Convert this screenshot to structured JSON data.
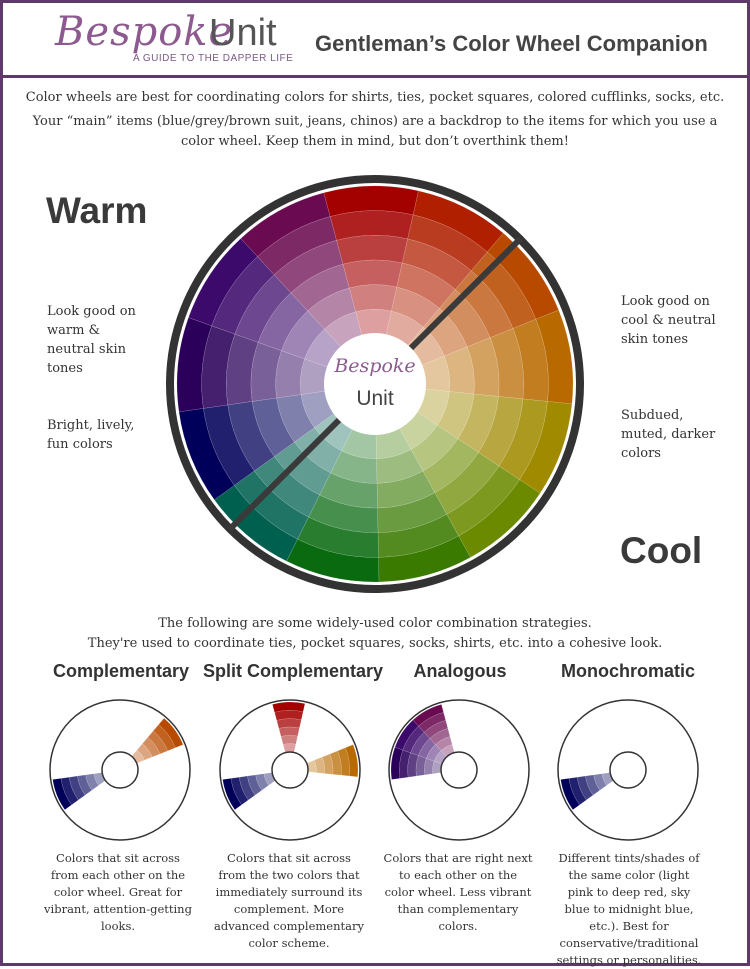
{
  "header": {
    "logo_script": "Bespoke",
    "logo_unit": "Unit",
    "logo_tagline": "A GUIDE TO THE DAPPER LIFE",
    "title": "Gentleman’s Color Wheel Companion"
  },
  "intro": {
    "line1": "Color wheels are best for coordinating colors for shirts, ties, pocket squares, colored cufflinks, socks, etc.",
    "line2": "Your “main” items (blue/grey/brown suit, jeans, chinos) are a backdrop to the items for which you use a color wheel. Keep them in mind, but don’t overthink them!"
  },
  "wheel": {
    "center_script": "Bespoke",
    "center_unit": "Unit",
    "hues": [
      "#a30000",
      "#b02000",
      "#b84a00",
      "#b86a00",
      "#a08a00",
      "#6c8a00",
      "#3a7a00",
      "#0a6a10",
      "#006050",
      "#00005a",
      "#2a005a",
      "#3c0a6a",
      "#6a0a50"
    ]
  },
  "warm": {
    "heading": "Warm",
    "note1": "Look good on warm & neutral skin tones",
    "note2": "Bright, lively, fun colors"
  },
  "cool": {
    "heading": "Cool",
    "note1": "Look good on cool & neutral skin tones",
    "note2": "Subdued, muted, darker colors"
  },
  "strategies_intro": {
    "line1": "The following are some widely-used color combination strategies.",
    "line2": "They're used to coordinate ties, pocket squares, socks, shirts, etc. into a cohesive look."
  },
  "strategies": [
    {
      "title": "Complementary",
      "desc": "Colors that sit across from each other on the color wheel. Great for vibrant, attention-getting looks."
    },
    {
      "title": "Split Complementary",
      "desc": "Colors that sit across from the two colors that immediately surround its complement. More advanced complementary color scheme."
    },
    {
      "title": "Analogous",
      "desc": "Colors that are right next to each other on the color wheel. Less vibrant than complementary colors."
    },
    {
      "title": "Monochromatic",
      "desc": "Different tints/shades of the same color (light pink to deep red, sky blue to midnight blue, etc.). Best for conservative/traditional settings or personalities."
    }
  ]
}
